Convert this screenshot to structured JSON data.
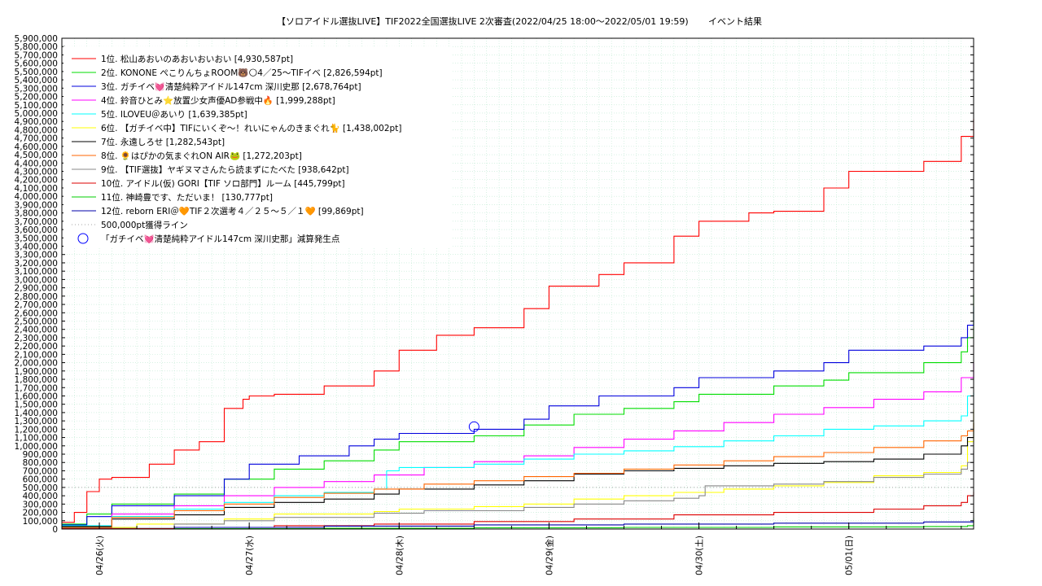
{
  "chart_data": {
    "type": "line",
    "title": "【ソロアイドル選抜LIVE】TIF2022全国選抜LIVE 2次審査(2022/04/25 18:00～2022/05/01 19:59)",
    "subtitle": "イベント結果",
    "x_start": "2022-04-25 18:00",
    "x_end": "2022-05-01 19:59",
    "x_ticks": [
      {
        "label": "04/26(火)",
        "value": "2022-04-26 00:00"
      },
      {
        "label": "04/27(水)",
        "value": "2022-04-27 00:00"
      },
      {
        "label": "04/28(木)",
        "value": "2022-04-28 00:00"
      },
      {
        "label": "04/29(金)",
        "value": "2022-04-29 00:00"
      },
      {
        "label": "04/30(土)",
        "value": "2022-04-30 00:00"
      },
      {
        "label": "05/01(日)",
        "value": "2022-05-01 00:00"
      }
    ],
    "ylim": [
      0,
      5900000
    ],
    "y_tick_step": 100000,
    "y_tick_labels": [
      "0",
      "100,000",
      "200,000",
      "300,000",
      "400,000",
      "500,000",
      "600,000",
      "700,000",
      "800,000",
      "900,000",
      "1,000,000",
      "1,100,000",
      "1,200,000",
      "1,300,000",
      "1,400,000",
      "1,500,000",
      "1,600,000",
      "1,700,000",
      "1,800,000",
      "1,900,000",
      "2,000,000",
      "2,100,000",
      "2,200,000",
      "2,300,000",
      "2,400,000",
      "2,500,000",
      "2,600,000",
      "2,700,000",
      "2,800,000",
      "2,900,000",
      "3,000,000",
      "3,100,000",
      "3,200,000",
      "3,300,000",
      "3,400,000",
      "3,500,000",
      "3,600,000",
      "3,700,000",
      "3,800,000",
      "3,900,000",
      "4,000,000",
      "4,100,000",
      "4,200,000",
      "4,300,000",
      "4,400,000",
      "4,500,000",
      "4,600,000",
      "4,700,000",
      "4,800,000",
      "4,900,000",
      "5,000,000",
      "5,100,000",
      "5,200,000",
      "5,300,000",
      "5,400,000",
      "5,500,000",
      "5,600,000",
      "5,700,000",
      "5,800,000",
      "5,900,000"
    ],
    "grid": true,
    "legend_position": "top-left",
    "series": [
      {
        "name": " 1位. 松山あおいのあおいおいおい [4,930,587pt]",
        "color": "#ff0000",
        "x": [
          "2022-04-25 18:00",
          "2022-04-25 20:00",
          "2022-04-25 22:00",
          "2022-04-26 00:00",
          "2022-04-26 02:00",
          "2022-04-26 08:00",
          "2022-04-26 12:00",
          "2022-04-26 16:00",
          "2022-04-26 20:00",
          "2022-04-26 23:00",
          "2022-04-27 00:00",
          "2022-04-27 04:00",
          "2022-04-27 12:00",
          "2022-04-27 20:00",
          "2022-04-28 00:00",
          "2022-04-28 06:00",
          "2022-04-28 12:00",
          "2022-04-28 20:00",
          "2022-04-29 00:00",
          "2022-04-29 08:00",
          "2022-04-29 12:00",
          "2022-04-29 20:00",
          "2022-04-30 00:00",
          "2022-04-30 08:00",
          "2022-04-30 12:00",
          "2022-04-30 20:00",
          "2022-05-01 00:00",
          "2022-05-01 12:00",
          "2022-05-01 18:00",
          "2022-05-01 19:59"
        ],
        "y": [
          80000,
          200000,
          450000,
          600000,
          620000,
          780000,
          950000,
          1050000,
          1450000,
          1560000,
          1600000,
          1620000,
          1720000,
          1900000,
          2150000,
          2330000,
          2420000,
          2650000,
          2920000,
          3060000,
          3200000,
          3520000,
          3700000,
          3800000,
          3820000,
          4100000,
          4300000,
          4420000,
          4720000,
          4930587
        ]
      },
      {
        "name": " 2位. KONONE ぺこりんちょROOM🐻🌕4／25〜TIFイベ [2,826,594pt]",
        "color": "#00dd00",
        "x": [
          "2022-04-25 18:00",
          "2022-04-25 22:00",
          "2022-04-26 02:00",
          "2022-04-26 12:00",
          "2022-04-26 20:00",
          "2022-04-27 04:00",
          "2022-04-27 12:00",
          "2022-04-27 20:00",
          "2022-04-28 00:00",
          "2022-04-28 12:00",
          "2022-04-28 20:00",
          "2022-04-29 04:00",
          "2022-04-29 12:00",
          "2022-04-29 20:00",
          "2022-04-30 00:00",
          "2022-04-30 12:00",
          "2022-04-30 20:00",
          "2022-05-01 00:00",
          "2022-05-01 12:00",
          "2022-05-01 18:00",
          "2022-05-01 19:00",
          "2022-05-01 19:59"
        ],
        "y": [
          60000,
          180000,
          300000,
          420000,
          600000,
          720000,
          820000,
          950000,
          1050000,
          1120000,
          1250000,
          1380000,
          1450000,
          1530000,
          1620000,
          1720000,
          1790000,
          1880000,
          2000000,
          2130000,
          2300000,
          2826594
        ]
      },
      {
        "name": " 3位. ガチイベ💓清楚純粋アイドル147cm 深川史那 [2,678,764pt]",
        "color": "#0000dd",
        "x": [
          "2022-04-25 18:00",
          "2022-04-25 22:00",
          "2022-04-26 02:00",
          "2022-04-26 12:00",
          "2022-04-26 20:00",
          "2022-04-27 00:00",
          "2022-04-27 08:00",
          "2022-04-27 16:00",
          "2022-04-27 20:00",
          "2022-04-28 00:00",
          "2022-04-28 12:00",
          "2022-04-28 20:00",
          "2022-04-29 00:00",
          "2022-04-29 08:00",
          "2022-04-29 20:00",
          "2022-04-30 00:00",
          "2022-04-30 12:00",
          "2022-04-30 20:00",
          "2022-05-01 00:00",
          "2022-05-01 12:00",
          "2022-05-01 18:00",
          "2022-05-01 19:00",
          "2022-05-01 19:59"
        ],
        "y": [
          50000,
          150000,
          280000,
          400000,
          600000,
          780000,
          880000,
          1000000,
          1080000,
          1150000,
          1200000,
          1320000,
          1480000,
          1600000,
          1700000,
          1820000,
          1900000,
          2000000,
          2150000,
          2200000,
          2300000,
          2450000,
          2678764
        ]
      },
      {
        "name": " 4位. 鈴音ひとみ⭐放置少女声優AD参戦中🔥 [1,999,288pt]",
        "color": "#ff00ff",
        "x": [
          "2022-04-25 18:00",
          "2022-04-26 02:00",
          "2022-04-26 12:00",
          "2022-04-26 20:00",
          "2022-04-27 04:00",
          "2022-04-27 12:00",
          "2022-04-27 20:00",
          "2022-04-28 04:00",
          "2022-04-28 12:00",
          "2022-04-28 20:00",
          "2022-04-29 04:00",
          "2022-04-29 12:00",
          "2022-04-29 20:00",
          "2022-04-30 04:00",
          "2022-04-30 12:00",
          "2022-04-30 20:00",
          "2022-05-01 04:00",
          "2022-05-01 12:00",
          "2022-05-01 18:00",
          "2022-05-01 19:59"
        ],
        "y": [
          30000,
          180000,
          280000,
          400000,
          500000,
          570000,
          650000,
          740000,
          810000,
          880000,
          980000,
          1080000,
          1180000,
          1280000,
          1380000,
          1460000,
          1560000,
          1650000,
          1820000,
          1999288
        ]
      },
      {
        "name": " 5位. ILOVEU＠あいり [1,639,385pt]",
        "color": "#00ffff",
        "x": [
          "2022-04-25 18:00",
          "2022-04-26 02:00",
          "2022-04-26 12:00",
          "2022-04-26 20:00",
          "2022-04-27 04:00",
          "2022-04-27 12:00",
          "2022-04-27 20:00",
          "2022-04-27 22:00",
          "2022-04-28 00:00",
          "2022-04-28 12:00",
          "2022-04-28 20:00",
          "2022-04-29 04:00",
          "2022-04-29 12:00",
          "2022-04-29 20:00",
          "2022-04-30 04:00",
          "2022-04-30 12:00",
          "2022-04-30 20:00",
          "2022-05-01 04:00",
          "2022-05-01 12:00",
          "2022-05-01 18:00",
          "2022-05-01 19:00",
          "2022-05-01 19:59"
        ],
        "y": [
          40000,
          150000,
          240000,
          320000,
          400000,
          440000,
          480000,
          700000,
          740000,
          780000,
          840000,
          900000,
          940000,
          990000,
          1060000,
          1120000,
          1200000,
          1240000,
          1300000,
          1360000,
          1600000,
          1639385
        ]
      },
      {
        "name": " 6位. 【ガチイベ中】TIFにいくぞ〜！れいにゃんのきまぐれ🐈 [1,438,002pt]",
        "color": "#ffff00",
        "x": [
          "2022-04-25 18:00",
          "2022-04-26 06:00",
          "2022-04-26 20:00",
          "2022-04-27 04:00",
          "2022-04-27 20:00",
          "2022-04-28 00:00",
          "2022-04-28 12:00",
          "2022-04-28 20:00",
          "2022-04-29 04:00",
          "2022-04-29 12:00",
          "2022-04-29 20:00",
          "2022-04-30 04:00",
          "2022-04-30 12:00",
          "2022-04-30 20:00",
          "2022-05-01 04:00",
          "2022-05-01 12:00",
          "2022-05-01 18:00",
          "2022-05-01 19:00",
          "2022-05-01 19:59"
        ],
        "y": [
          20000,
          60000,
          120000,
          180000,
          210000,
          240000,
          270000,
          300000,
          360000,
          400000,
          440000,
          480000,
          520000,
          560000,
          640000,
          680000,
          760000,
          1050000,
          1438002
        ]
      },
      {
        "name": " 7位. 永遠しろせ [1,282,543pt]",
        "color": "#000000",
        "x": [
          "2022-04-25 18:00",
          "2022-04-26 02:00",
          "2022-04-26 12:00",
          "2022-04-26 20:00",
          "2022-04-27 04:00",
          "2022-04-27 12:00",
          "2022-04-27 20:00",
          "2022-04-28 00:00",
          "2022-04-28 12:00",
          "2022-04-28 20:00",
          "2022-04-29 04:00",
          "2022-04-29 12:00",
          "2022-04-29 20:00",
          "2022-04-30 04:00",
          "2022-04-30 12:00",
          "2022-04-30 20:00",
          "2022-05-01 04:00",
          "2022-05-01 12:00",
          "2022-05-01 18:00",
          "2022-05-01 19:00",
          "2022-05-01 19:59"
        ],
        "y": [
          30000,
          120000,
          170000,
          260000,
          320000,
          360000,
          420000,
          480000,
          530000,
          580000,
          660000,
          700000,
          730000,
          760000,
          790000,
          810000,
          840000,
          900000,
          1000000,
          1100000,
          1282543
        ]
      },
      {
        "name": " 8位. 🌻はぴかの気まぐれON AIR🐸 [1,272,203pt]",
        "color": "#ff6600",
        "x": [
          "2022-04-25 18:00",
          "2022-04-26 02:00",
          "2022-04-26 12:00",
          "2022-04-26 20:00",
          "2022-04-27 04:00",
          "2022-04-27 12:00",
          "2022-04-27 20:00",
          "2022-04-28 04:00",
          "2022-04-28 12:00",
          "2022-04-28 20:00",
          "2022-04-29 04:00",
          "2022-04-29 12:00",
          "2022-04-29 20:00",
          "2022-04-30 04:00",
          "2022-04-30 12:00",
          "2022-04-30 20:00",
          "2022-05-01 04:00",
          "2022-05-01 12:00",
          "2022-05-01 18:00",
          "2022-05-01 19:00",
          "2022-05-01 19:59"
        ],
        "y": [
          20000,
          140000,
          220000,
          300000,
          380000,
          430000,
          480000,
          540000,
          580000,
          630000,
          670000,
          720000,
          770000,
          820000,
          870000,
          920000,
          980000,
          1060000,
          1120000,
          1180000,
          1272203
        ]
      },
      {
        "name": " 9位. 【TIF選抜】ヤギヌマさんたら読まずにたべた [938,642pt]",
        "color": "#888888",
        "x": [
          "2022-04-25 18:00",
          "2022-04-26 12:00",
          "2022-04-26 20:00",
          "2022-04-27 04:00",
          "2022-04-27 20:00",
          "2022-04-28 04:00",
          "2022-04-28 20:00",
          "2022-04-29 04:00",
          "2022-04-29 12:00",
          "2022-04-29 20:00",
          "2022-04-30 00:00",
          "2022-04-30 01:00",
          "2022-04-30 12:00",
          "2022-04-30 20:00",
          "2022-05-01 04:00",
          "2022-05-01 12:00",
          "2022-05-01 18:00",
          "2022-05-01 19:00",
          "2022-05-01 19:59"
        ],
        "y": [
          10000,
          60000,
          100000,
          140000,
          190000,
          220000,
          260000,
          300000,
          340000,
          370000,
          400000,
          520000,
          540000,
          570000,
          620000,
          660000,
          720000,
          800000,
          938642
        ]
      },
      {
        "name": "10位. アイドル(仮) GORI【TIF ソロ部門】ルーム [445,799pt]",
        "color": "#dd0000",
        "x": [
          "2022-04-25 18:00",
          "2022-04-26 12:00",
          "2022-04-27 04:00",
          "2022-04-27 20:00",
          "2022-04-28 12:00",
          "2022-04-29 04:00",
          "2022-04-29 20:00",
          "2022-04-30 12:00",
          "2022-05-01 04:00",
          "2022-05-01 12:00",
          "2022-05-01 18:00",
          "2022-05-01 19:00",
          "2022-05-01 19:59"
        ],
        "y": [
          5000,
          20000,
          40000,
          60000,
          90000,
          120000,
          170000,
          200000,
          240000,
          280000,
          320000,
          400000,
          445799
        ]
      },
      {
        "name": "11位. 神崎豊です、ただいま！ [130,777pt]",
        "color": "#00cc00",
        "x": [
          "2022-04-25 18:00",
          "2022-04-26 12:00",
          "2022-04-27 12:00",
          "2022-04-28 12:00",
          "2022-04-29 12:00",
          "2022-04-30 12:00",
          "2022-05-01 12:00",
          "2022-05-01 19:00",
          "2022-05-01 19:59"
        ],
        "y": [
          0,
          5000,
          10000,
          15000,
          20000,
          25000,
          30000,
          40000,
          130777
        ]
      },
      {
        "name": "12位. reborn ERI＠🧡TIF２次選考４／２５〜５／１🧡 [99,869pt]",
        "color": "#0000aa",
        "x": [
          "2022-04-25 18:00",
          "2022-04-26 12:00",
          "2022-04-27 12:00",
          "2022-04-28 12:00",
          "2022-04-29 12:00",
          "2022-04-30 12:00",
          "2022-05-01 12:00",
          "2022-05-01 19:59"
        ],
        "y": [
          0,
          20000,
          35000,
          50000,
          60000,
          70000,
          85000,
          99869
        ]
      }
    ],
    "reference_line": {
      "name": "500,000pt獲得ライン",
      "value": 500000,
      "color": "#888888"
    },
    "marker": {
      "name": "「ガチイベ💓清楚純粋アイドル147cm 深川史那」減算発生点",
      "x": "2022-04-28 12:00",
      "y": 1230000,
      "color": "#0000ff"
    }
  }
}
